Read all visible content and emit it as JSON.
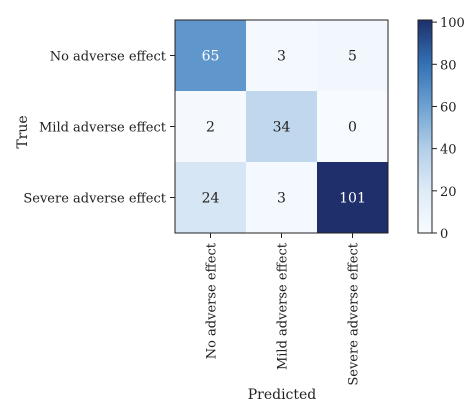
{
  "chart_data": {
    "type": "heatmap",
    "title": "",
    "xlabel": "Predicted",
    "ylabel": "True",
    "x_categories": [
      "No adverse effect",
      "Mild adverse effect",
      "Severe adverse effect"
    ],
    "y_categories": [
      "No adverse effect",
      "Mild adverse effect",
      "Severe adverse effect"
    ],
    "values": [
      [
        65,
        3,
        5
      ],
      [
        2,
        34,
        0
      ],
      [
        24,
        3,
        101
      ]
    ],
    "colorbar": {
      "min": 0,
      "max": 101,
      "ticks": [
        0,
        20,
        40,
        60,
        80,
        100
      ],
      "colormap": "Blues",
      "low_color": "#f7fbff",
      "high_color": "#1e2f6b"
    }
  }
}
